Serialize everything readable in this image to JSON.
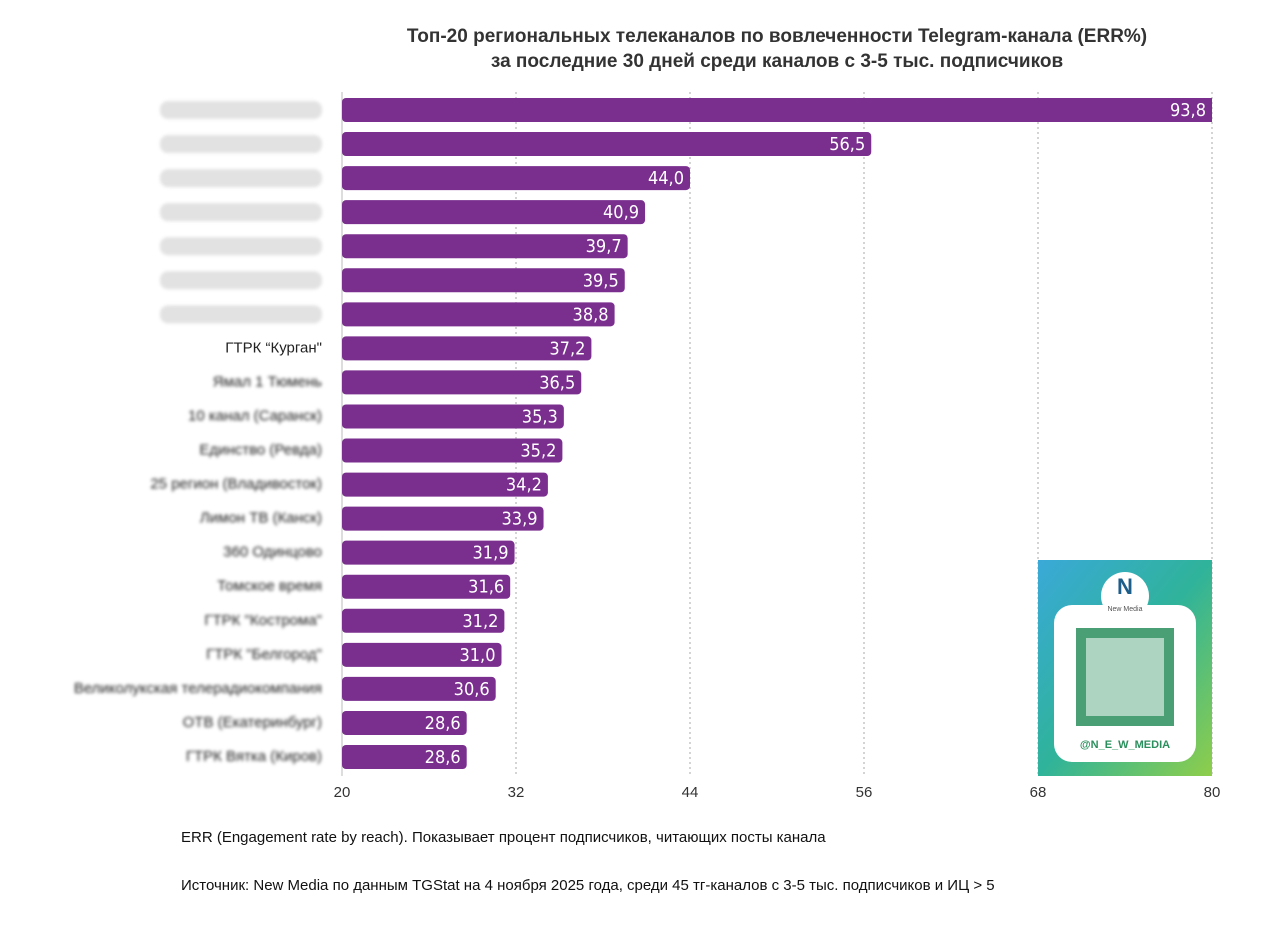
{
  "chart_data": {
    "type": "bar",
    "orientation": "horizontal",
    "title": [
      "Топ-20 региональных телеканалов по вовлеченности Telegram-канала (ERR%)",
      "за последние 30 дней среди каналов с 3-5 тыс. подписчиков"
    ],
    "categories": [
      null,
      null,
      null,
      null,
      null,
      null,
      null,
      "ГТРК “Курган\"",
      "Ямал 1 Тюмень",
      "10 канал (Саранск)",
      "Единство (Ревда)",
      "25 регион (Владивосток)",
      "Лимон ТВ (Канск)",
      "360 Одинцово",
      "Томское время",
      "ГТРК \"Кострома\"",
      "ГТРК \"Белгород\"",
      "Великолукская телерадиокомпания",
      "ОТВ (Екатеринбург)",
      "ГТРК Вятка (Киров)"
    ],
    "values": [
      93.8,
      56.5,
      44.0,
      40.9,
      39.7,
      39.5,
      38.8,
      37.2,
      36.5,
      35.3,
      35.2,
      34.2,
      33.9,
      31.9,
      31.6,
      31.2,
      31.0,
      30.6,
      28.6,
      28.6
    ],
    "value_labels": [
      "93,8",
      "56,5",
      "44,0",
      "40,9",
      "39,7",
      "39,5",
      "38,8",
      "37,2",
      "36,5",
      "35,3",
      "35,2",
      "34,2",
      "33,9",
      "31,9",
      "31,6",
      "31,2",
      "31,0",
      "30,6",
      "28,6",
      "28,6"
    ],
    "color": "#7a2e8e",
    "xlim": [
      20,
      80
    ],
    "xticks": [
      20,
      32,
      44,
      56,
      68,
      80
    ],
    "grid": true,
    "notes": [
      "ERR (Engagement rate by reach). Показывает процент подписчиков, читающих посты канала",
      "Источник: New Media по данным TGStat на 4 ноября 2025 года, среди 45 тг-каналов с 3-5 тыс. подписчиков и ИЦ > 5"
    ],
    "qr_logo": "New Media",
    "qr_caption": "@N_E_W_MEDIA"
  }
}
